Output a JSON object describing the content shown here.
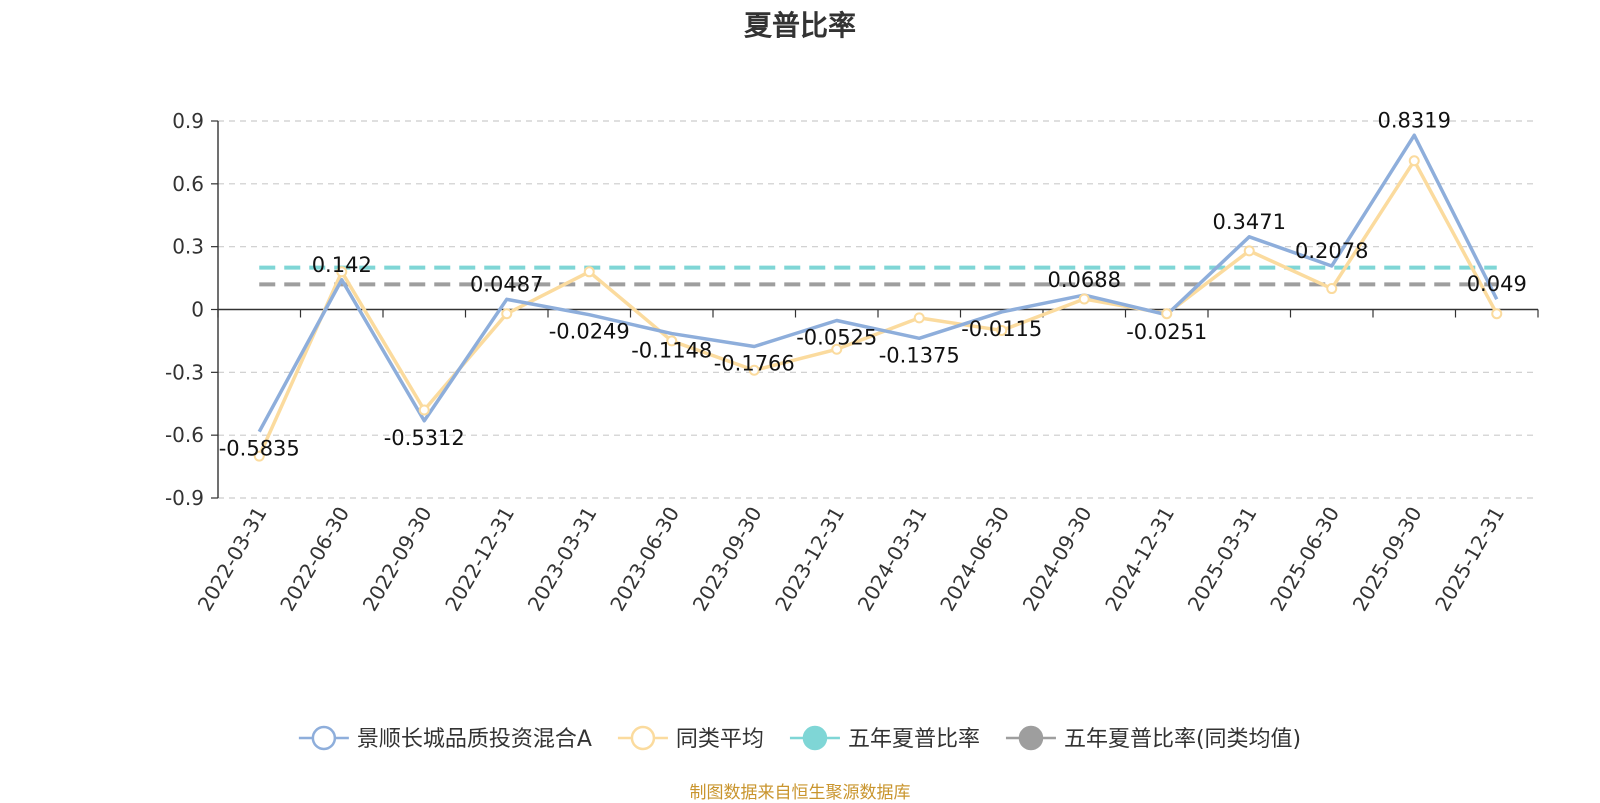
{
  "chart_data": {
    "type": "line",
    "title": "夏普比率",
    "categories": [
      "2022-03-31",
      "2022-06-30",
      "2022-09-30",
      "2022-12-31",
      "2023-03-31",
      "2023-06-30",
      "2023-09-30",
      "2023-12-31",
      "2024-03-31",
      "2024-06-30",
      "2024-09-30",
      "2024-12-31",
      "2025-03-31",
      "2025-06-30",
      "2025-09-30",
      "2025-12-31"
    ],
    "ylim": [
      -0.9,
      0.9
    ],
    "yticks": [
      "0.9",
      "0.6",
      "0.3",
      "0",
      "-0.3",
      "-0.6",
      "-0.9"
    ],
    "ytick_values": [
      0.9,
      0.6,
      0.3,
      0,
      -0.3,
      -0.6,
      -0.9
    ],
    "grid": "horizontal-dashed",
    "legend_position": "bottom",
    "series": [
      {
        "name": "景顺长城品质投资混合A",
        "color": "#8eaedb",
        "values": [
          -0.5835,
          0.142,
          -0.5312,
          0.0487,
          -0.0249,
          -0.1148,
          -0.1766,
          -0.0525,
          -0.1375,
          -0.0115,
          0.0688,
          -0.0251,
          0.3471,
          0.2078,
          0.8319,
          0.049
        ],
        "labels": [
          "-0.5835",
          "0.142",
          "-0.5312",
          "0.0487",
          "-0.0249",
          "-0.1148",
          "-0.1766",
          "-0.0525",
          "-0.1375",
          "-0.0115",
          "0.0688",
          "-0.0251",
          "0.3471",
          "0.2078",
          "0.8319",
          "0.049"
        ]
      },
      {
        "name": "同类平均",
        "color": "#fbdb9e",
        "values": [
          -0.7,
          0.18,
          -0.48,
          -0.02,
          0.18,
          -0.15,
          -0.29,
          -0.19,
          -0.04,
          -0.1,
          0.05,
          -0.02,
          0.28,
          0.1,
          0.71,
          -0.02
        ]
      },
      {
        "name": "五年夏普比率",
        "color": "#7fd6d6",
        "constant": 0.2
      },
      {
        "name": "五年夏普比率(同类均值)",
        "color": "#9e9e9e",
        "constant": 0.12
      }
    ]
  },
  "source_note": "制图数据来自恒生聚源数据库",
  "source_color": "#c9952e"
}
